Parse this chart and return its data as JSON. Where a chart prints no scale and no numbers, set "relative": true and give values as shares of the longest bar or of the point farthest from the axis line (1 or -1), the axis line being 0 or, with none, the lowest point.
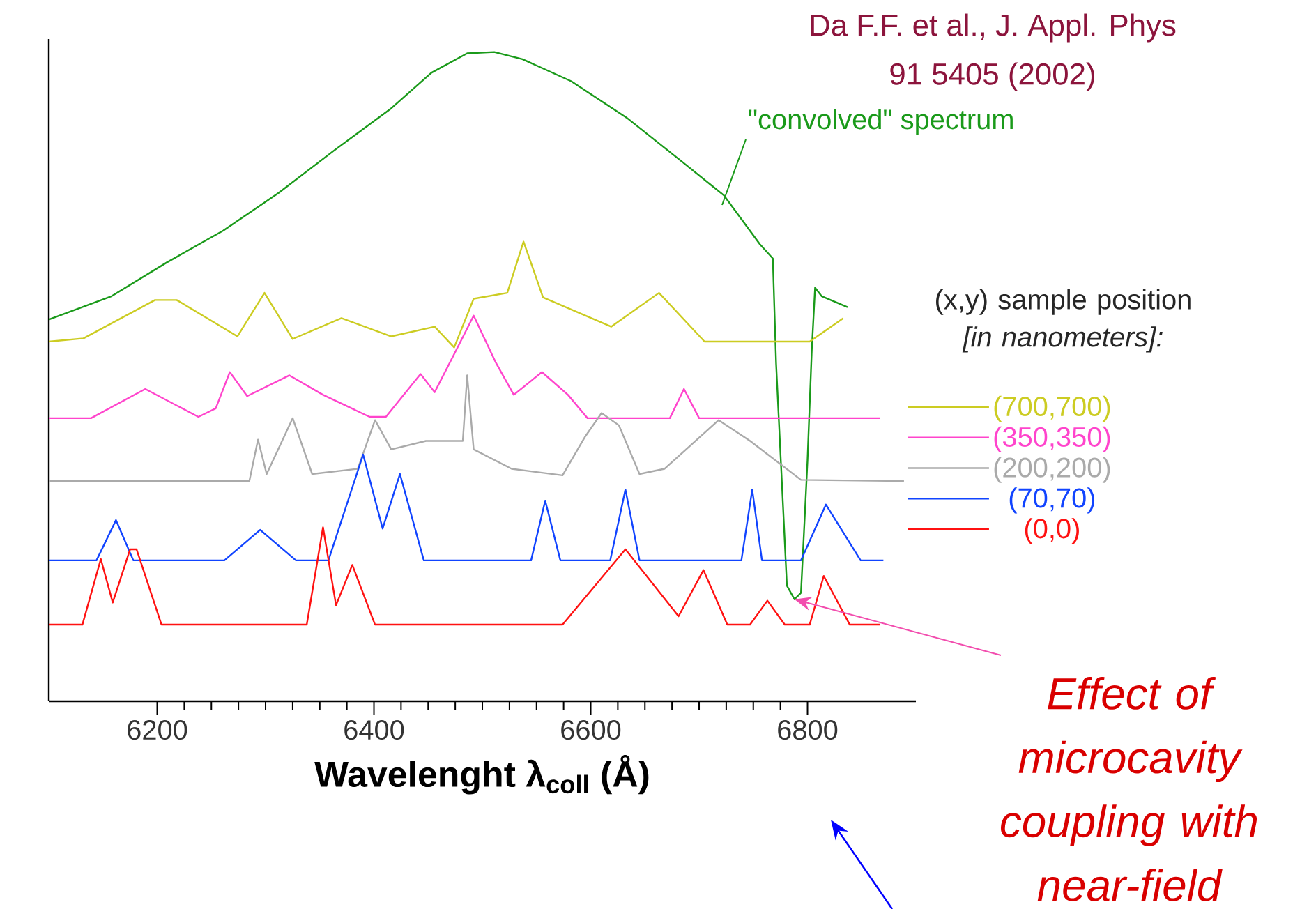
{
  "chart_data": {
    "type": "line",
    "relative": true,
    "xlabel": "Wavelenght λ$_{coll}$ (Å)",
    "xlim": [
      6100,
      6900
    ],
    "xticks": [
      6200,
      6400,
      6600,
      6800
    ],
    "legend": "right",
    "legend_title": "(x,y) sample position *[in nanometers]:*",
    "annotations": [
      "Da F.F. et al., J. Appl. Phys",
      "91 5405 (2002)",
      {
        "text": "Effect of microcavity coupling with near-field",
        "x": 6788,
        "y": 0.157
      }
    ],
    "series": [
      {
        "name": "\"convolved\" spectrum",
        "color": "#1a9a1a",
        "x": [
          6100,
          6158,
          6209,
          6261,
          6312,
          6363,
          6415,
          6453,
          6486,
          6511,
          6537,
          6582,
          6633,
          6685,
          6723,
          6756,
          6768,
          6771,
          6781,
          6788,
          6794,
          6800,
          6804,
          6807,
          6813,
          6837
        ],
        "values": [
          0.588,
          0.624,
          0.676,
          0.725,
          0.783,
          0.848,
          0.912,
          0.968,
          0.998,
          1.0,
          0.989,
          0.955,
          0.899,
          0.83,
          0.779,
          0.704,
          0.682,
          0.521,
          0.178,
          0.157,
          0.167,
          0.371,
          0.543,
          0.637,
          0.624,
          0.607
        ]
      },
      {
        "name": "(700,700)",
        "color": "#cccc22",
        "x": [
          6100,
          6132,
          6198,
          6218,
          6274,
          6299,
          6325,
          6370,
          6416,
          6456,
          6474,
          6492,
          6523,
          6538,
          6556,
          6619,
          6663,
          6705,
          6802,
          6833
        ],
        "values": [
          0.554,
          0.559,
          0.618,
          0.618,
          0.562,
          0.629,
          0.558,
          0.59,
          0.562,
          0.577,
          0.545,
          0.62,
          0.629,
          0.708,
          0.622,
          0.577,
          0.629,
          0.554,
          0.554,
          0.59
        ]
      },
      {
        "name": "(350,350)",
        "color": "#ff44cc",
        "x": [
          6100,
          6139,
          6189,
          6238,
          6254,
          6267,
          6283,
          6322,
          6353,
          6396,
          6411,
          6443,
          6456,
          6479,
          6492,
          6512,
          6529,
          6555,
          6579,
          6597,
          6673,
          6686,
          6700,
          6867
        ],
        "values": [
          0.436,
          0.436,
          0.481,
          0.438,
          0.451,
          0.507,
          0.47,
          0.502,
          0.472,
          0.438,
          0.438,
          0.504,
          0.476,
          0.551,
          0.594,
          0.523,
          0.472,
          0.507,
          0.472,
          0.436,
          0.436,
          0.481,
          0.436,
          0.436
        ]
      },
      {
        "name": "(200,200)",
        "color": "#aaaaaa",
        "x": [
          6100,
          6285,
          6293,
          6301,
          6325,
          6343,
          6385,
          6401,
          6416,
          6448,
          6482,
          6486,
          6492,
          6527,
          6574,
          6595,
          6610,
          6626,
          6645,
          6668,
          6718,
          6747,
          6794,
          6889
        ],
        "values": [
          0.339,
          0.339,
          0.403,
          0.35,
          0.436,
          0.35,
          0.358,
          0.433,
          0.388,
          0.401,
          0.401,
          0.502,
          0.388,
          0.358,
          0.348,
          0.408,
          0.444,
          0.425,
          0.35,
          0.358,
          0.433,
          0.401,
          0.341,
          0.339
        ]
      },
      {
        "name": "(70,70)",
        "color": "#1144ff",
        "x": [
          6100,
          6144,
          6162,
          6178,
          6262,
          6295,
          6328,
          6358,
          6390,
          6408,
          6424,
          6446,
          6545,
          6558,
          6572,
          6618,
          6632,
          6645,
          6739,
          6749,
          6758,
          6794,
          6817,
          6849,
          6870
        ],
        "values": [
          0.217,
          0.217,
          0.279,
          0.217,
          0.217,
          0.264,
          0.217,
          0.217,
          0.38,
          0.266,
          0.35,
          0.217,
          0.217,
          0.309,
          0.217,
          0.217,
          0.326,
          0.217,
          0.217,
          0.326,
          0.217,
          0.217,
          0.303,
          0.217,
          0.217
        ]
      },
      {
        "name": "(0,0)",
        "color": "#ff1111",
        "x": [
          6100,
          6131,
          6148,
          6159,
          6175,
          6181,
          6204,
          6338,
          6353,
          6365,
          6380,
          6401,
          6574,
          6632,
          6681,
          6704,
          6726,
          6747,
          6763,
          6779,
          6802,
          6815,
          6839,
          6867
        ],
        "values": [
          0.118,
          0.118,
          0.219,
          0.152,
          0.234,
          0.234,
          0.118,
          0.118,
          0.268,
          0.148,
          0.21,
          0.118,
          0.118,
          0.234,
          0.131,
          0.202,
          0.118,
          0.118,
          0.155,
          0.118,
          0.118,
          0.193,
          0.118,
          0.118
        ]
      }
    ]
  }
}
